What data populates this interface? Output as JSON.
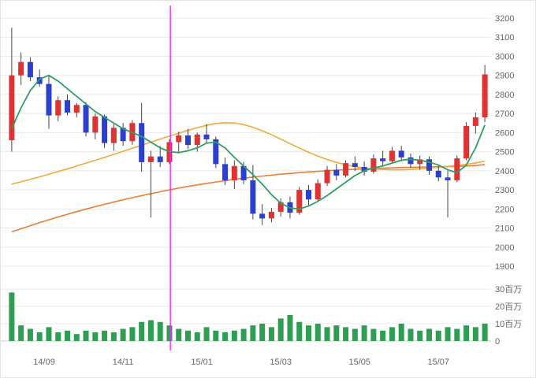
{
  "chart_data": {
    "type": "candlestick",
    "title": "",
    "description": "Weekly stock candlestick chart with three moving averages, volume pane and magenta date marker",
    "price_axis": {
      "position": "right",
      "min": 1900,
      "max": 3200,
      "step": 100,
      "labels": [
        "3200",
        "3100",
        "3000",
        "2900",
        "2800",
        "2700",
        "2600",
        "2500",
        "2400",
        "2300",
        "2200",
        "2100",
        "2000",
        "1900"
      ]
    },
    "volume_axis": {
      "max": 30,
      "unit": "百万",
      "labels": [
        {
          "value": 30,
          "text": "30百万"
        },
        {
          "value": 20,
          "text": "20百万"
        },
        {
          "value": 10,
          "text": "10百万"
        },
        {
          "value": 0,
          "text": "0"
        }
      ]
    },
    "x_ticks": [
      {
        "index": 3.5,
        "label": "14/09"
      },
      {
        "index": 12.0,
        "label": "14/11"
      },
      {
        "index": 20.5,
        "label": "15/01"
      },
      {
        "index": 29.0,
        "label": "15/03"
      },
      {
        "index": 37.5,
        "label": "15/05"
      },
      {
        "index": 46.0,
        "label": "15/07"
      }
    ],
    "marker_line": {
      "index": 17.1,
      "color": "#ff22ff"
    },
    "candles_format": [
      "open",
      "high",
      "low",
      "close",
      "volume_millions"
    ],
    "candles": [
      [
        2560,
        3150,
        2500,
        2900,
        28
      ],
      [
        2900,
        3020,
        2850,
        2970,
        9
      ],
      [
        2970,
        2995,
        2870,
        2890,
        7
      ],
      [
        2890,
        2930,
        2840,
        2855,
        5
      ],
      [
        2855,
        2900,
        2620,
        2690,
        8
      ],
      [
        2690,
        2790,
        2660,
        2770,
        5
      ],
      [
        2770,
        2800,
        2690,
        2705,
        6
      ],
      [
        2705,
        2755,
        2680,
        2745,
        4
      ],
      [
        2745,
        2760,
        2580,
        2600,
        6
      ],
      [
        2600,
        2700,
        2565,
        2685,
        5
      ],
      [
        2685,
        2695,
        2520,
        2545,
        6
      ],
      [
        2545,
        2645,
        2505,
        2625,
        5
      ],
      [
        2625,
        2650,
        2530,
        2555,
        7
      ],
      [
        2555,
        2665,
        2535,
        2650,
        8
      ],
      [
        2650,
        2755,
        2395,
        2445,
        11
      ],
      [
        2445,
        2505,
        2155,
        2475,
        12
      ],
      [
        2475,
        2530,
        2420,
        2445,
        11
      ],
      [
        2445,
        2565,
        2435,
        2550,
        9
      ],
      [
        2550,
        2605,
        2495,
        2585,
        7
      ],
      [
        2585,
        2620,
        2515,
        2535,
        6
      ],
      [
        2535,
        2600,
        2500,
        2590,
        5
      ],
      [
        2590,
        2645,
        2545,
        2565,
        8
      ],
      [
        2565,
        2580,
        2415,
        2435,
        6
      ],
      [
        2435,
        2470,
        2325,
        2350,
        5
      ],
      [
        2350,
        2455,
        2305,
        2425,
        6
      ],
      [
        2425,
        2445,
        2330,
        2350,
        7
      ],
      [
        2350,
        2430,
        2145,
        2175,
        9
      ],
      [
        2175,
        2225,
        2115,
        2150,
        10
      ],
      [
        2150,
        2205,
        2130,
        2185,
        8
      ],
      [
        2185,
        2255,
        2160,
        2235,
        13
      ],
      [
        2235,
        2265,
        2150,
        2180,
        15
      ],
      [
        2180,
        2315,
        2170,
        2300,
        11
      ],
      [
        2300,
        2325,
        2220,
        2250,
        9
      ],
      [
        2250,
        2355,
        2240,
        2335,
        10
      ],
      [
        2335,
        2425,
        2320,
        2405,
        8
      ],
      [
        2405,
        2435,
        2350,
        2375,
        9
      ],
      [
        2375,
        2455,
        2365,
        2440,
        8
      ],
      [
        2440,
        2475,
        2400,
        2420,
        7
      ],
      [
        2420,
        2450,
        2375,
        2395,
        9
      ],
      [
        2395,
        2485,
        2385,
        2465,
        7
      ],
      [
        2465,
        2505,
        2430,
        2450,
        6
      ],
      [
        2450,
        2525,
        2440,
        2505,
        8
      ],
      [
        2505,
        2530,
        2450,
        2470,
        10
      ],
      [
        2470,
        2490,
        2415,
        2435,
        7
      ],
      [
        2435,
        2480,
        2405,
        2460,
        6
      ],
      [
        2460,
        2475,
        2380,
        2400,
        7
      ],
      [
        2400,
        2430,
        2345,
        2365,
        6
      ],
      [
        2365,
        2400,
        2155,
        2350,
        8
      ],
      [
        2350,
        2480,
        2340,
        2465,
        7
      ],
      [
        2465,
        2655,
        2455,
        2635,
        9
      ],
      [
        2635,
        2705,
        2595,
        2680,
        8
      ],
      [
        2680,
        2955,
        2655,
        2905,
        10
      ]
    ],
    "moving_averages": [
      {
        "name": "short-term",
        "color": "#2f9e64",
        "values": [
          2620,
          2730,
          2820,
          2880,
          2900,
          2870,
          2830,
          2790,
          2750,
          2710,
          2680,
          2650,
          2620,
          2600,
          2580,
          2550,
          2520,
          2500,
          2495,
          2505,
          2520,
          2545,
          2550,
          2520,
          2470,
          2425,
          2380,
          2330,
          2275,
          2230,
          2205,
          2200,
          2215,
          2240,
          2270,
          2305,
          2340,
          2375,
          2400,
          2415,
          2425,
          2440,
          2455,
          2460,
          2455,
          2445,
          2430,
          2405,
          2390,
          2430,
          2520,
          2640
        ]
      },
      {
        "name": "mid-term",
        "color": "#f2a93b",
        "values": [
          2330,
          2342,
          2355,
          2368,
          2382,
          2396,
          2410,
          2425,
          2440,
          2455,
          2470,
          2486,
          2502,
          2518,
          2534,
          2550,
          2566,
          2582,
          2597,
          2612,
          2626,
          2638,
          2648,
          2652,
          2650,
          2642,
          2628,
          2610,
          2589,
          2566,
          2542,
          2519,
          2497,
          2477,
          2459,
          2444,
          2432,
          2422,
          2415,
          2410,
          2407,
          2405,
          2405,
          2407,
          2410,
          2414,
          2418,
          2423,
          2428,
          2434,
          2441,
          2450
        ]
      },
      {
        "name": "long-term",
        "color": "#ed7d31",
        "values": [
          2080,
          2096,
          2112,
          2128,
          2143,
          2158,
          2172,
          2186,
          2199,
          2212,
          2224,
          2236,
          2248,
          2259,
          2270,
          2280,
          2290,
          2300,
          2309,
          2318,
          2326,
          2334,
          2341,
          2348,
          2355,
          2361,
          2367,
          2372,
          2377,
          2382,
          2386,
          2390,
          2394,
          2397,
          2400,
          2403,
          2406,
          2408,
          2410,
          2412,
          2414,
          2415,
          2417,
          2418,
          2419,
          2420,
          2421,
          2422,
          2423,
          2425,
          2428,
          2432
        ]
      }
    ],
    "colors": {
      "up": "#e03232",
      "down": "#2b3fd1",
      "wick": "#444444",
      "volume": "#2e9e52",
      "grid": "#e9e9e9",
      "axis_line": "#cccccc",
      "axis_text": "#666666",
      "background": "#ffffff"
    }
  }
}
